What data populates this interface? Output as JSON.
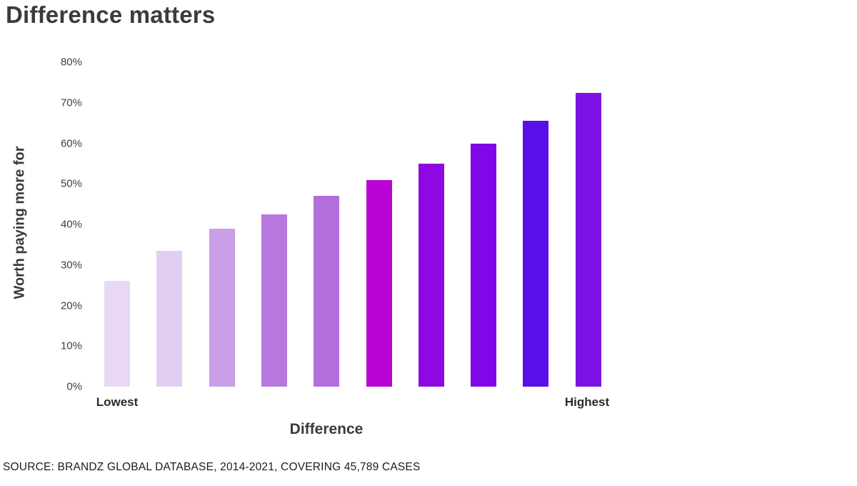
{
  "title": "Difference matters",
  "source": "SOURCE: BRANDZ GLOBAL DATABASE, 2014-2021, COVERING 45,789 CASES",
  "colors": {
    "background": "#ffffff",
    "title_text": "#3b3b3b",
    "axis_text": "#3f3f3f",
    "end_label_text": "#2a2a2a"
  },
  "chart_data": {
    "type": "bar",
    "title": "Difference matters",
    "xlabel": "Difference",
    "ylabel": "Worth paying more for",
    "categories": [
      "Lowest",
      "",
      "",
      "",
      "",
      "",
      "",
      "",
      "",
      "Highest"
    ],
    "x_end_labels": [
      "Lowest",
      "Highest"
    ],
    "values": [
      26,
      33.5,
      39,
      42.5,
      47,
      51,
      55,
      60,
      65.5,
      72.5
    ],
    "bar_colors": [
      "#e9d8f5",
      "#e2cef2",
      "#c89fe8",
      "#b678dc",
      "#b26fdb",
      "#b803d2",
      "#8d08e3",
      "#7f07e8",
      "#5a0ee8",
      "#7d12e4"
    ],
    "y_ticks": [
      "80%",
      "70%",
      "60%",
      "50%",
      "40%",
      "30%",
      "20%",
      "10%",
      "0%"
    ],
    "ylim": [
      0,
      80
    ],
    "grid": false,
    "legend": "none",
    "axis_lines": "none"
  }
}
